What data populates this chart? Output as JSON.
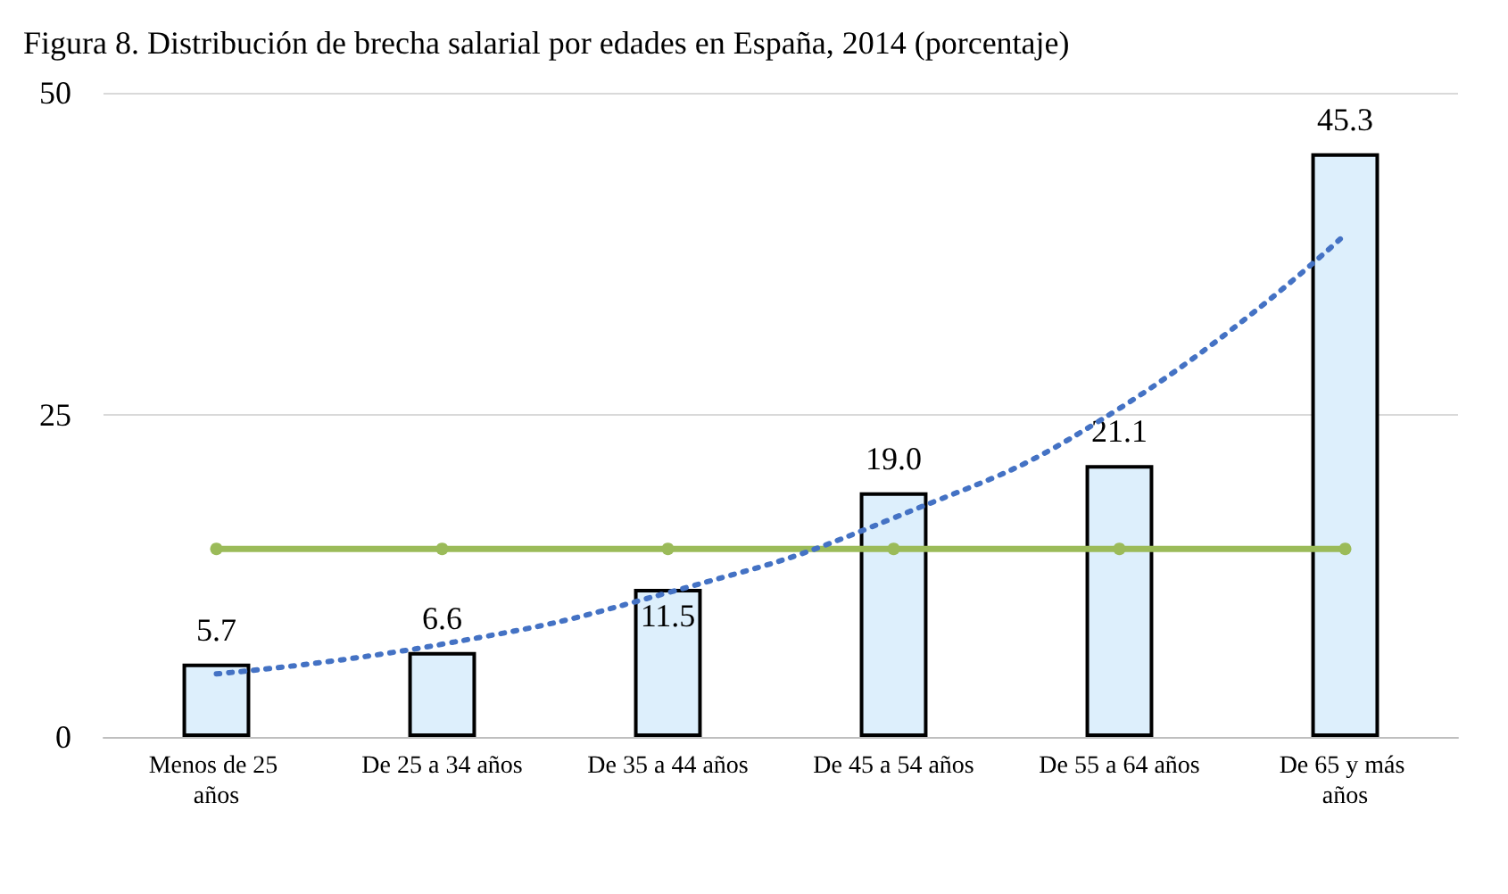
{
  "chart_data": {
    "type": "bar",
    "title": "Figura 8. Distribución de brecha salarial por edades en España, 2014 (porcentaje)",
    "categories": [
      "Menos de 25 años",
      "De 25 a 34 años",
      "De 35 a 44 años",
      "De 45 a 54 años",
      "De 55 a 64 años",
      "De 65 y más años"
    ],
    "series": [
      {
        "color": "#ddeffc",
        "values": [
          5.7,
          6.6,
          11.5,
          19.0,
          21.1,
          45.3
        ],
        "data_labels": true,
        "value_labels": [
          "5.7",
          "6.6",
          "11.5",
          "19.0",
          "21.1",
          "45.3"
        ]
      },
      {
        "type": "line",
        "color": "#9bbb59",
        "values": [
          14.6,
          14.6,
          14.6,
          14.6,
          14.6,
          14.6
        ],
        "marker": "circle",
        "line_style": "solid"
      },
      {
        "type": "line",
        "color": "#4472c4",
        "values": [
          4.9,
          7.2,
          11.2,
          17,
          25.5,
          39
        ],
        "marker": "none",
        "line_style": "dotted"
      }
    ],
    "ylim": [
      0,
      50
    ],
    "yticks": [
      0,
      25,
      50
    ],
    "grid": "y"
  }
}
